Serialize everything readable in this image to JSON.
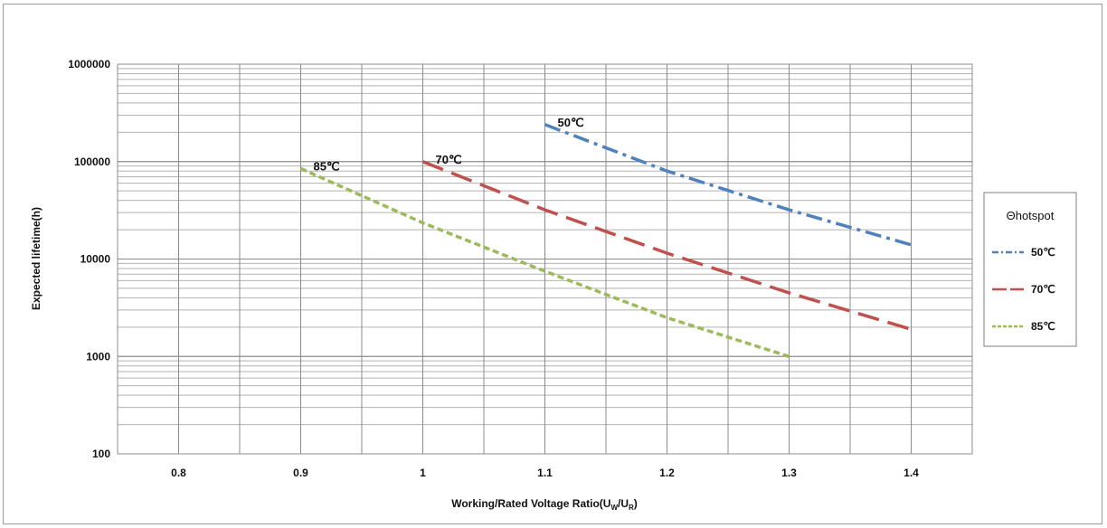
{
  "chart_data": {
    "type": "line",
    "xlabel": "Working/Rated Voltage Ratio(U_W/U_R)",
    "xlabel_parts": {
      "main": "Working/Rated Voltage Ratio(U",
      "sub1": "W",
      "mid": "/U",
      "sub2": "R",
      "end": ")"
    },
    "ylabel": "Expected lifetime(h)",
    "x_scale": "linear",
    "y_scale": "log",
    "xlim": [
      0.75,
      1.45
    ],
    "ylim": [
      100,
      1000000
    ],
    "x_ticks": [
      0.8,
      0.9,
      1,
      1.1,
      1.2,
      1.3,
      1.4
    ],
    "x_tick_labels": [
      "0.8",
      "0.9",
      "1",
      "1.1",
      "1.2",
      "1.3",
      "1.4"
    ],
    "y_ticks": [
      100,
      1000,
      10000,
      100000,
      1000000
    ],
    "y_tick_labels": [
      "100",
      "1000",
      "10000",
      "100000",
      "1000000"
    ],
    "grid": true,
    "legend": {
      "title": "Θhotspot",
      "position": "right"
    },
    "series": [
      {
        "name": "50℃",
        "color": "#4f81bd",
        "dash": "dash-dot",
        "x": [
          1.1,
          1.2,
          1.3,
          1.4
        ],
        "y": [
          240000,
          80000,
          32000,
          14000
        ]
      },
      {
        "name": "70℃",
        "color": "#c0504d",
        "dash": "long-dash",
        "x": [
          1.0,
          1.1,
          1.2,
          1.3,
          1.4
        ],
        "y": [
          100000,
          32000,
          11500,
          4500,
          1900
        ]
      },
      {
        "name": "85℃",
        "color": "#9bbb59",
        "dash": "short-dash",
        "x": [
          0.9,
          1.0,
          1.1,
          1.2,
          1.3
        ],
        "y": [
          85000,
          23500,
          7500,
          2500,
          1000
        ]
      }
    ]
  }
}
